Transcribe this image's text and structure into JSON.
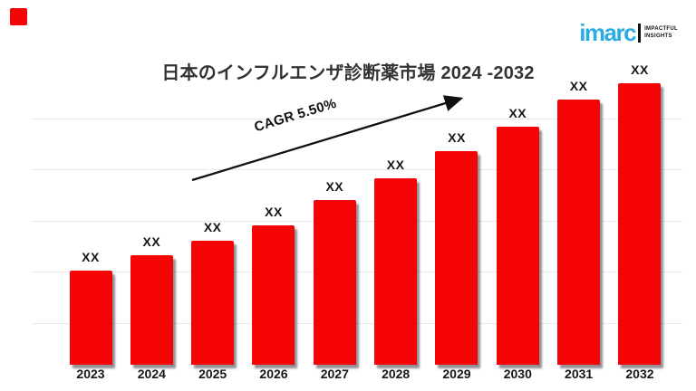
{
  "slide": {
    "title": "日本のインフルエンザ診断薬市場 2024 -2032",
    "accent_color": "#f40404"
  },
  "logo": {
    "word": "imarc",
    "tagline_line1": "IMPACTFUL",
    "tagline_line2": "INSIGHTS",
    "color": "#2aabe2"
  },
  "annotation": {
    "cagr_label": "CAGR 5.50%"
  },
  "chart_data": {
    "type": "bar",
    "title": "日本のインフルエンザ診断薬市場 2024 -2032",
    "categories": [
      "2023",
      "2024",
      "2025",
      "2026",
      "2027",
      "2028",
      "2029",
      "2030",
      "2031",
      "2032"
    ],
    "bar_labels": [
      "XX",
      "XX",
      "XX",
      "XX",
      "XX",
      "XX",
      "XX",
      "XX",
      "XX",
      "XX"
    ],
    "relative_heights_pct": [
      33.5,
      39.0,
      44.1,
      49.6,
      58.6,
      66.3,
      75.7,
      84.6,
      94.2,
      100
    ],
    "bar_color": "#f40404",
    "grid": true,
    "gridline_color": "#e9e9e9",
    "legend": false,
    "xlabel": "",
    "ylabel": "",
    "annotation": "CAGR 5.50%"
  }
}
